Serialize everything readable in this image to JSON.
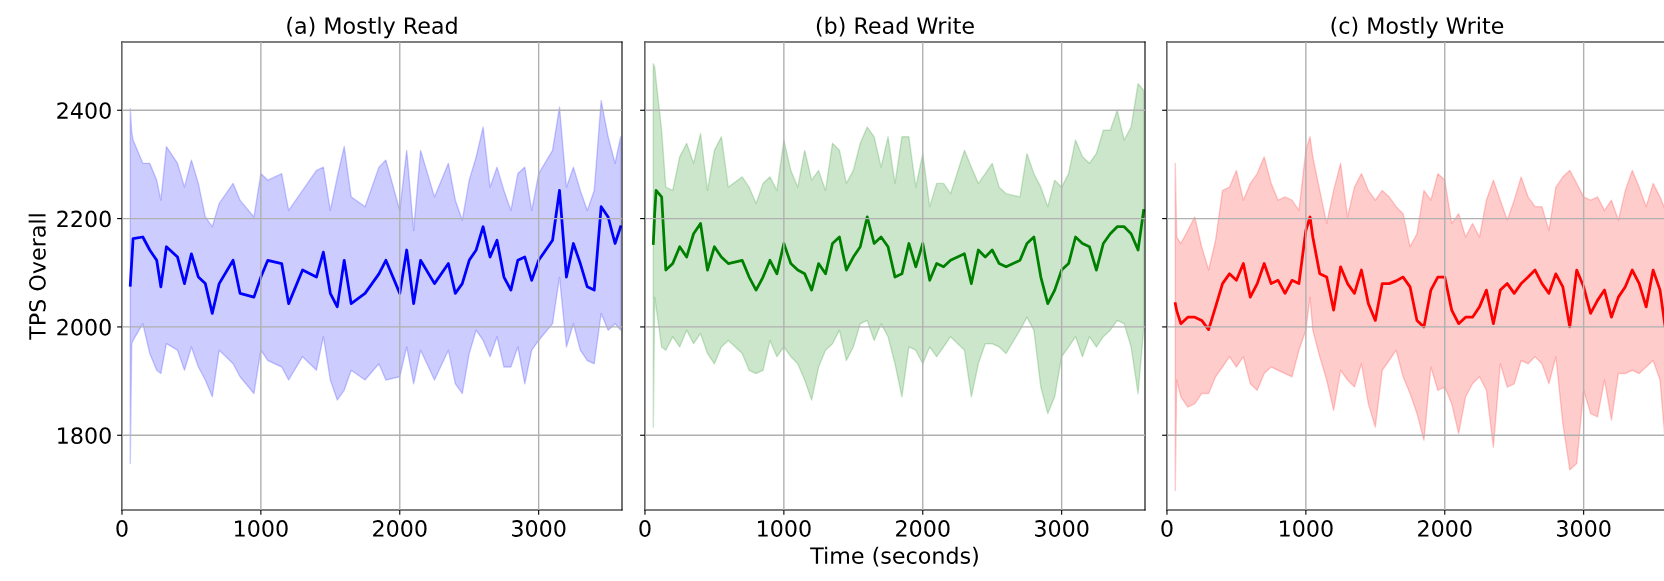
{
  "chart_data": [
    {
      "type": "line",
      "title": "(a) Mostly Read",
      "ylabel": "TPS Overall",
      "xlim": [
        0,
        3600
      ],
      "xticks": [
        0,
        1000,
        2000,
        3000
      ],
      "ylim": [
        1662,
        2526
      ],
      "yticks": [
        1800,
        2000,
        2200,
        2400
      ],
      "grid": true,
      "series": [
        {
          "color": "#0000ff",
          "x": [
            60,
            70,
            80,
            150,
            200,
            250,
            280,
            320,
            400,
            450,
            500,
            550,
            600,
            650,
            700,
            800,
            850,
            950,
            1000,
            1050,
            1150,
            1200,
            1300,
            1400,
            1450,
            1500,
            1550,
            1600,
            1650,
            1750,
            1850,
            1900,
            2000,
            2050,
            2100,
            2150,
            2250,
            2350,
            2400,
            2450,
            2500,
            2550,
            2600,
            2650,
            2700,
            2750,
            2800,
            2850,
            2900,
            2950,
            3000,
            3100,
            3150,
            3200,
            3250,
            3300,
            3350,
            3400,
            3450,
            3500,
            3550,
            3590
          ],
          "values": [
            2077,
            2120,
            2163,
            2166,
            2142,
            2123,
            2074,
            2148,
            2129,
            2080,
            2135,
            2092,
            2080,
            2025,
            2080,
            2123,
            2062,
            2055,
            2092,
            2123,
            2117,
            2043,
            2105,
            2092,
            2138,
            2062,
            2037,
            2123,
            2043,
            2062,
            2098,
            2123,
            2062,
            2142,
            2043,
            2123,
            2080,
            2117,
            2062,
            2080,
            2123,
            2142,
            2185,
            2129,
            2160,
            2092,
            2068,
            2123,
            2129,
            2086,
            2123,
            2160,
            2252,
            2092,
            2154,
            2117,
            2074,
            2068,
            2222,
            2203,
            2154,
            2185
          ],
          "upper": [
            2403,
            2360,
            2345,
            2302,
            2302,
            2271,
            2234,
            2333,
            2302,
            2258,
            2308,
            2265,
            2203,
            2185,
            2228,
            2265,
            2234,
            2203,
            2283,
            2271,
            2283,
            2215,
            2252,
            2289,
            2295,
            2215,
            2277,
            2333,
            2240,
            2222,
            2295,
            2308,
            2215,
            2326,
            2178,
            2326,
            2240,
            2302,
            2234,
            2197,
            2271,
            2314,
            2369,
            2258,
            2295,
            2252,
            2215,
            2283,
            2295,
            2215,
            2283,
            2326,
            2406,
            2258,
            2295,
            2252,
            2215,
            2252,
            2418,
            2351,
            2302,
            2351
          ],
          "lower": [
            1748,
            1969,
            1975,
            2006,
            1951,
            1920,
            1914,
            1969,
            1957,
            1920,
            1963,
            1926,
            1902,
            1871,
            1957,
            1932,
            1908,
            1877,
            1957,
            1938,
            1926,
            1902,
            1945,
            1920,
            1982,
            1902,
            1865,
            1883,
            1920,
            1902,
            1932,
            1902,
            1908,
            1963,
            1895,
            1957,
            1902,
            1957,
            1895,
            1877,
            1951,
            1994,
            1975,
            1945,
            1982,
            1926,
            1926,
            1963,
            1895,
            1957,
            1975,
            2006,
            2092,
            1963,
            2006,
            1957,
            1938,
            1932,
            2025,
            1994,
            2006,
            1994
          ]
        }
      ]
    },
    {
      "type": "line",
      "title": "(b) Read Write",
      "xlabel": "Time (seconds)",
      "xlim": [
        0,
        3600
      ],
      "xticks": [
        0,
        1000,
        2000,
        3000
      ],
      "ylim": [
        1662,
        2526
      ],
      "yticks": [
        1800,
        2000,
        2200,
        2400
      ],
      "grid": true,
      "tick_labels": "x",
      "series": [
        {
          "color": "#008000",
          "x": [
            60,
            70,
            80,
            120,
            150,
            200,
            250,
            300,
            350,
            400,
            450,
            500,
            550,
            600,
            700,
            750,
            800,
            850,
            900,
            950,
            1000,
            1050,
            1100,
            1150,
            1200,
            1250,
            1300,
            1350,
            1400,
            1450,
            1500,
            1550,
            1600,
            1650,
            1700,
            1750,
            1800,
            1850,
            1900,
            1950,
            2000,
            2050,
            2100,
            2150,
            2200,
            2300,
            2350,
            2400,
            2450,
            2500,
            2550,
            2600,
            2700,
            2750,
            2800,
            2850,
            2900,
            2950,
            3000,
            3050,
            3100,
            3150,
            3200,
            3250,
            3300,
            3350,
            3400,
            3450,
            3500,
            3550,
            3590
          ],
          "values": [
            2154,
            2210,
            2252,
            2240,
            2105,
            2117,
            2148,
            2129,
            2172,
            2191,
            2105,
            2148,
            2129,
            2117,
            2123,
            2092,
            2068,
            2092,
            2123,
            2098,
            2154,
            2117,
            2105,
            2098,
            2068,
            2117,
            2098,
            2154,
            2166,
            2105,
            2129,
            2148,
            2203,
            2154,
            2166,
            2148,
            2092,
            2098,
            2154,
            2111,
            2154,
            2086,
            2117,
            2111,
            2123,
            2135,
            2080,
            2142,
            2129,
            2142,
            2117,
            2111,
            2123,
            2154,
            2166,
            2092,
            2043,
            2068,
            2105,
            2117,
            2166,
            2154,
            2148,
            2105,
            2154,
            2172,
            2185,
            2185,
            2172,
            2142,
            2215
          ],
          "upper": [
            2486,
            2480,
            2455,
            2363,
            2258,
            2252,
            2314,
            2339,
            2302,
            2357,
            2252,
            2326,
            2351,
            2258,
            2277,
            2258,
            2228,
            2265,
            2277,
            2252,
            2345,
            2289,
            2258,
            2326,
            2271,
            2289,
            2252,
            2339,
            2326,
            2265,
            2289,
            2339,
            2369,
            2351,
            2295,
            2351,
            2265,
            2351,
            2351,
            2258,
            2320,
            2222,
            2265,
            2265,
            2246,
            2326,
            2295,
            2265,
            2283,
            2302,
            2258,
            2246,
            2240,
            2320,
            2283,
            2258,
            2222,
            2271,
            2258,
            2283,
            2345,
            2314,
            2302,
            2320,
            2363,
            2363,
            2400,
            2345,
            2369,
            2449,
            2437
          ],
          "lower": [
            1815,
            2055,
            2037,
            1963,
            1957,
            1982,
            1963,
            1994,
            1969,
            1988,
            1951,
            1932,
            1963,
            1975,
            1951,
            1920,
            1914,
            1920,
            1975,
            1945,
            1963,
            1945,
            1932,
            1902,
            1865,
            1926,
            1957,
            1969,
            1994,
            1938,
            1963,
            2006,
            2012,
            1975,
            2006,
            1982,
            1932,
            1871,
            1963,
            1957,
            1932,
            1963,
            1945,
            1963,
            1982,
            1957,
            1871,
            1932,
            1969,
            1969,
            1963,
            1951,
            1994,
            2018,
            1994,
            1889,
            1840,
            1871,
            1945,
            1963,
            1982,
            1945,
            1982,
            1963,
            1982,
            1994,
            2012,
            2006,
            1963,
            1877,
            1994
          ]
        }
      ]
    },
    {
      "type": "line",
      "title": "(c) Mostly Write",
      "xlim": [
        0,
        3600
      ],
      "xticks": [
        0,
        1000,
        2000,
        3000
      ],
      "ylim": [
        1662,
        2526
      ],
      "yticks": [
        1800,
        2000,
        2200,
        2400
      ],
      "grid": true,
      "tick_labels": "x",
      "series": [
        {
          "color": "#ff0000",
          "x": [
            60,
            70,
            100,
            150,
            200,
            250,
            300,
            350,
            400,
            450,
            500,
            550,
            600,
            650,
            700,
            750,
            800,
            850,
            900,
            950,
            1000,
            1030,
            1050,
            1100,
            1150,
            1200,
            1250,
            1300,
            1350,
            1400,
            1450,
            1500,
            1550,
            1600,
            1650,
            1700,
            1750,
            1800,
            1850,
            1900,
            1950,
            2000,
            2050,
            2100,
            2150,
            2200,
            2250,
            2300,
            2350,
            2400,
            2450,
            2500,
            2550,
            2600,
            2650,
            2700,
            2750,
            2800,
            2850,
            2900,
            2950,
            3000,
            3050,
            3100,
            3150,
            3200,
            3250,
            3300,
            3350,
            3400,
            3450,
            3500,
            3550,
            3590
          ],
          "values": [
            2043,
            2030,
            2006,
            2018,
            2018,
            2012,
            1995,
            2037,
            2080,
            2098,
            2086,
            2117,
            2055,
            2080,
            2117,
            2080,
            2086,
            2062,
            2086,
            2080,
            2178,
            2203,
            2166,
            2098,
            2092,
            2031,
            2111,
            2080,
            2062,
            2105,
            2043,
            2012,
            2080,
            2080,
            2085,
            2092,
            2074,
            2012,
            2000,
            2068,
            2092,
            2092,
            2031,
            2006,
            2018,
            2018,
            2037,
            2068,
            2006,
            2068,
            2080,
            2062,
            2080,
            2092,
            2105,
            2080,
            2062,
            2098,
            2074,
            2000,
            2105,
            2074,
            2025,
            2049,
            2068,
            2018,
            2055,
            2074,
            2105,
            2080,
            2037,
            2105,
            2068,
            1994
          ],
          "upper": [
            2302,
            2166,
            2154,
            2178,
            2203,
            2148,
            2105,
            2160,
            2252,
            2258,
            2289,
            2234,
            2265,
            2283,
            2314,
            2265,
            2234,
            2240,
            2234,
            2215,
            2326,
            2351,
            2314,
            2252,
            2191,
            2252,
            2302,
            2203,
            2258,
            2283,
            2252,
            2234,
            2252,
            2240,
            2222,
            2209,
            2148,
            2172,
            2252,
            2234,
            2283,
            2271,
            2191,
            2209,
            2166,
            2191,
            2166,
            2234,
            2271,
            2234,
            2197,
            2234,
            2277,
            2240,
            2222,
            2222,
            2178,
            2258,
            2277,
            2289,
            2265,
            2240,
            2234,
            2240,
            2215,
            2234,
            2197,
            2252,
            2289,
            2258,
            2222,
            2265,
            2240,
            2215
          ],
          "lower": [
            1698,
            1902,
            1871,
            1852,
            1858,
            1877,
            1877,
            1908,
            1926,
            1945,
            1926,
            1945,
            1895,
            1883,
            1914,
            1926,
            1920,
            1914,
            1908,
            1957,
            1994,
            2055,
            1994,
            1945,
            1902,
            1846,
            1920,
            1902,
            1889,
            1932,
            1858,
            1815,
            1920,
            1938,
            1957,
            1908,
            1877,
            1840,
            1791,
            1926,
            1883,
            1889,
            1858,
            1803,
            1871,
            1895,
            1908,
            1883,
            1778,
            1932,
            1889,
            1895,
            1938,
            1932,
            1945,
            1932,
            1895,
            1945,
            1822,
            1736,
            1748,
            1883,
            1840,
            1834,
            1902,
            1828,
            1914,
            1914,
            1920,
            1914,
            1926,
            1938,
            1902,
            1778
          ]
        }
      ]
    }
  ]
}
